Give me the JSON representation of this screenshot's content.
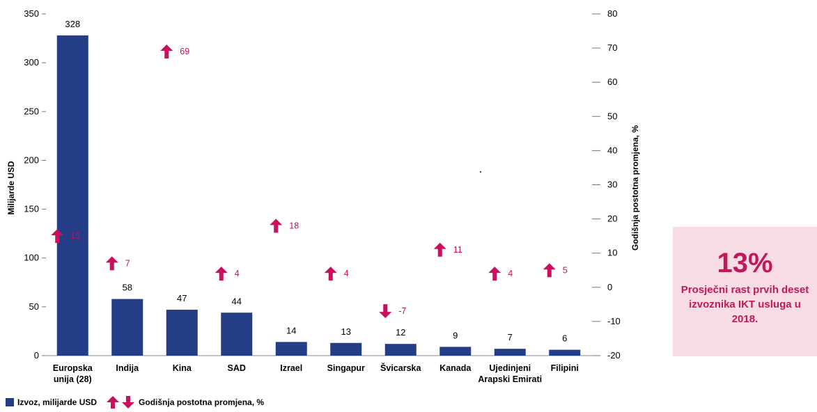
{
  "chart_data": {
    "type": "bar",
    "categories": [
      "Europska unija (28)",
      "Indija",
      "Kina",
      "SAD",
      "Izrael",
      "Singapur",
      "Švicarska",
      "Kanada",
      "Ujedinjeni Arapski Emirati",
      "Filipini"
    ],
    "category_lines": [
      [
        "Europska",
        "unija (28)"
      ],
      [
        "Indija"
      ],
      [
        "Kina"
      ],
      [
        "SAD"
      ],
      [
        "Izrael"
      ],
      [
        "Singapur"
      ],
      [
        "Švicarska"
      ],
      [
        "Kanada"
      ],
      [
        "Ujedinjeni",
        "Arapski Emirati"
      ],
      [
        "Filipini"
      ]
    ],
    "series": [
      {
        "name": "Izvoz, milijarde USD",
        "axis": "left",
        "values": [
          328,
          58,
          47,
          44,
          14,
          13,
          12,
          9,
          7,
          6
        ],
        "color": "#233d87"
      },
      {
        "name": "Godišnja postotna promjena, %",
        "axis": "right",
        "values": [
          15,
          7,
          69,
          4,
          18,
          4,
          -7,
          11,
          4,
          5
        ],
        "color": "#c90f5e"
      }
    ],
    "value_labels": [
      "328",
      "58",
      "47",
      "44",
      "14",
      "13",
      "12",
      "9",
      "7",
      "6"
    ],
    "change_labels": [
      "15",
      "7",
      "69",
      "4",
      "18",
      "4",
      "-7",
      "11",
      "4",
      "5"
    ],
    "ylabel": "Milijarde USD",
    "y2label": "Godišnja postotna promjena, %",
    "ylim": [
      0,
      350
    ],
    "yticks": [
      0,
      50,
      100,
      150,
      200,
      250,
      300,
      350
    ],
    "y2lim": [
      -20,
      80
    ],
    "y2ticks": [
      -20,
      -10,
      0,
      10,
      20,
      30,
      40,
      50,
      60,
      70,
      80
    ],
    "grid": false,
    "legend_position": "bottom-left"
  },
  "legend": {
    "bar_label": "Izvoz, milijarde USD",
    "arrow_label": "Godišnja postotna promjena, %"
  },
  "callout": {
    "value": "13%",
    "text": "Prosječni rast prvih deset izvoznika IKT usluga u 2018.",
    "background": "#f7dde3",
    "color": "#c2185b"
  }
}
